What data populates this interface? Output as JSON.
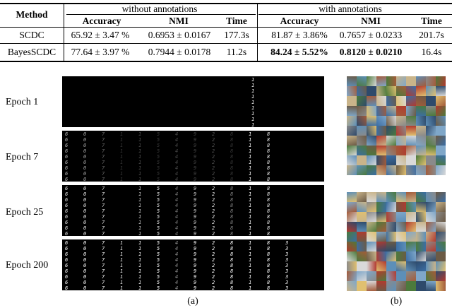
{
  "table": {
    "col_method": "Method",
    "group_without": "without annotations",
    "group_with": "with annotations",
    "col_accuracy": "Accuracy",
    "col_nmi": "NMI",
    "col_time": "Time",
    "rows": [
      {
        "method": "SCDC",
        "acc1": "65.92 ± 3.47 %",
        "nmi1": "0.6953 ± 0.0167",
        "time1": "177.3s",
        "acc2": "81.87 ± 3.86%",
        "nmi2": "0.7657 ± 0.0233",
        "time2": "201.7s"
      },
      {
        "method": "BayesSCDC",
        "acc1": "77.64 ± 3.97 %",
        "nmi1": "0.7944 ± 0.0178",
        "time1": "11.2s",
        "acc2": "84.24 ± 5.52%",
        "nmi2": "0.8120 ± 0.0210",
        "time2": "16.4s"
      }
    ]
  },
  "figure": {
    "epochs": [
      "Epoch 1",
      "Epoch 7",
      "Epoch 25",
      "Epoch 200"
    ],
    "caption_a": "(a)",
    "caption_b": "(b)"
  }
}
